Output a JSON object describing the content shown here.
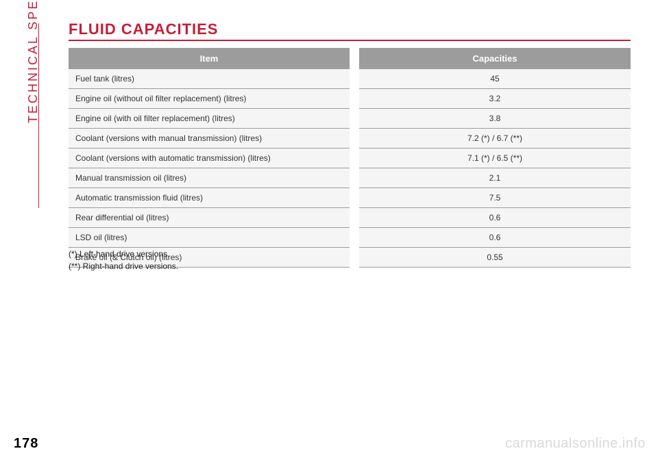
{
  "section_label": "TECHNICAL SPECIFICATIONS",
  "page_title": "FLUID CAPACITIES",
  "page_number": "178",
  "watermark": "carmanualsonline.info",
  "table": {
    "header_bg": "#9c9c9c",
    "header_fg": "#ffffff",
    "row_bg": "#f5f5f5",
    "border_color": "#9c9c9c",
    "accent_color": "#c41e3a",
    "columns": [
      "Item",
      "Capacities"
    ],
    "rows": [
      [
        "Fuel tank (litres)",
        "45"
      ],
      [
        "Engine oil (without oil filter replacement) (litres)",
        "3.2"
      ],
      [
        "Engine oil (with oil filter replacement) (litres)",
        "3.8"
      ],
      [
        "Coolant (versions with manual transmission) (litres)",
        "7.2 (*) / 6.7 (**)"
      ],
      [
        "Coolant (versions with automatic transmission) (litres)",
        "7.1 (*) / 6.5 (**)"
      ],
      [
        "Manual transmission oil (litres)",
        "2.1"
      ],
      [
        "Automatic transmission fluid (litres)",
        "7.5"
      ],
      [
        "Rear differential oil (litres)",
        "0.6"
      ],
      [
        "LSD oil (litres)",
        "0.6"
      ],
      [
        "Brake oil (& Clutch oil) (litres)",
        "0.55"
      ]
    ]
  },
  "footnotes": [
    "(*) Left-hand drive versions.",
    "(**) Right-hand drive versions."
  ]
}
